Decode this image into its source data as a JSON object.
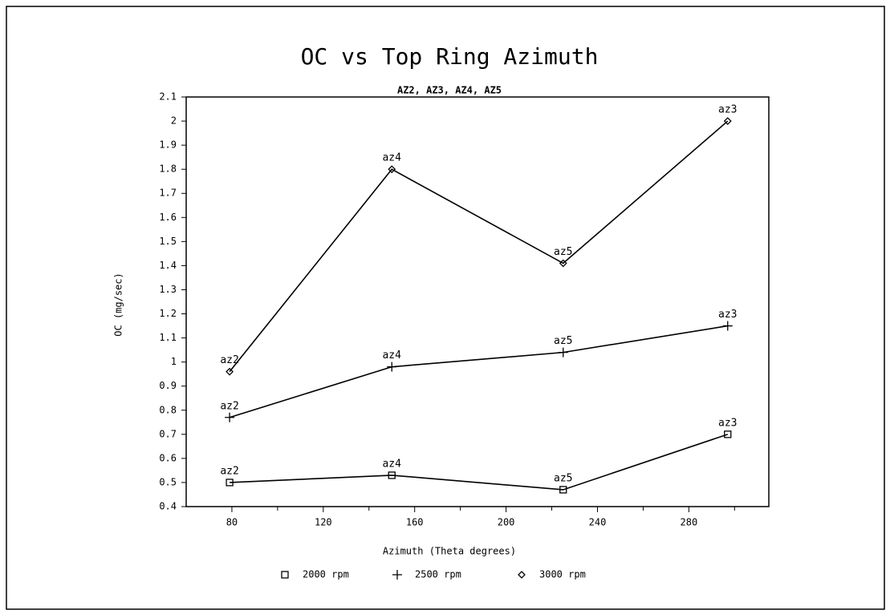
{
  "chart_data": {
    "type": "line",
    "title": "OC vs Top Ring Azimuth",
    "subtitle": "AZ2, AZ3, AZ4, AZ5",
    "x_label": "Azimuth (Theta degrees)",
    "y_label": "OC (mg/sec)",
    "x": [
      79,
      150,
      225,
      297
    ],
    "point_labels": [
      "az2",
      "az4",
      "az5",
      "az3"
    ],
    "series": [
      {
        "name": "2000 rpm",
        "color": "#000000",
        "marker": "square",
        "values": [
          0.5,
          0.53,
          0.47,
          0.7
        ]
      },
      {
        "name": "2500 rpm",
        "color": "#000000",
        "marker": "plus",
        "values": [
          0.77,
          0.98,
          1.04,
          1.15
        ]
      },
      {
        "name": "3000 rpm",
        "color": "#000000",
        "marker": "diamond",
        "values": [
          0.96,
          1.8,
          1.41,
          2.0
        ]
      }
    ],
    "xlim": [
      60,
      315
    ],
    "xticks": [
      80,
      120,
      160,
      200,
      240,
      280
    ],
    "x_minor_ticks": [
      100,
      140,
      180,
      220,
      260,
      300
    ],
    "ylim": [
      0.4,
      2.1
    ],
    "yticks": [
      0.4,
      0.5,
      0.6,
      0.7,
      0.8,
      0.9,
      1,
      1.1,
      1.2,
      1.3,
      1.4,
      1.5,
      1.6,
      1.7,
      1.8,
      1.9,
      2,
      2.1
    ],
    "legend": "bottom",
    "grid": false
  }
}
